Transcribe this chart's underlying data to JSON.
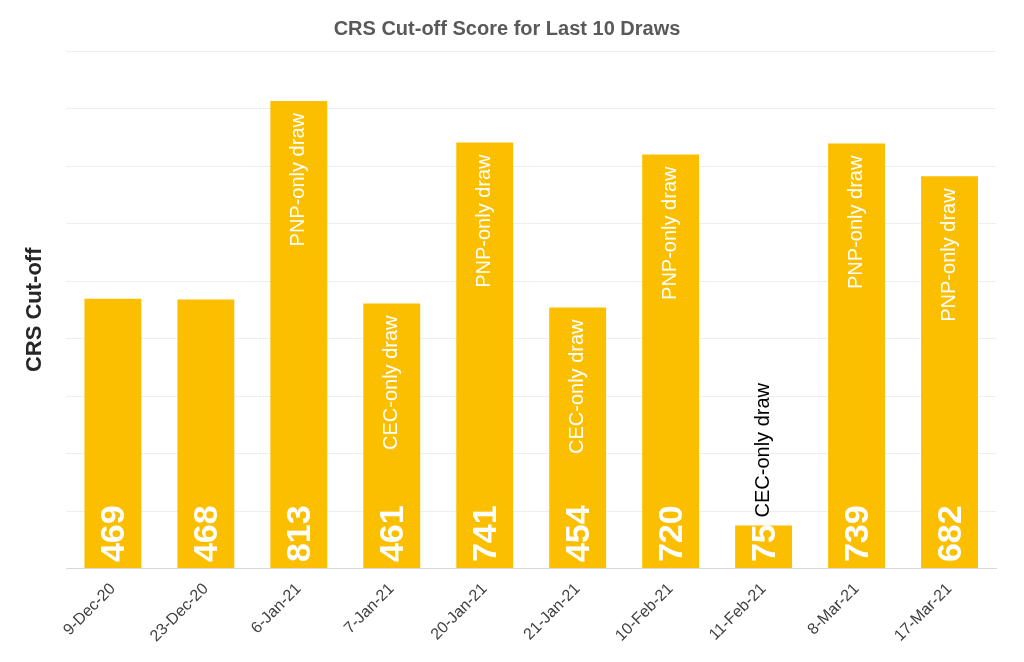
{
  "chart_data": {
    "type": "bar",
    "title": "CRS Cut-off Score for Last 10 Draws",
    "ylabel": "CRS Cut-off",
    "categories": [
      "9-Dec-20",
      "23-Dec-20",
      "6-Jan-21",
      "7-Jan-21",
      "20-Jan-21",
      "21-Jan-21",
      "10-Feb-21",
      "11-Feb-21",
      "8-Mar-21",
      "17-Mar-21"
    ],
    "values": [
      469,
      468,
      813,
      461,
      741,
      454,
      720,
      75,
      739,
      682
    ],
    "color": "#fbbf00",
    "ylim": [
      0,
      900
    ],
    "yticks": [
      {
        "value": 0,
        "label": null
      },
      {
        "value": 100,
        "label": null
      },
      {
        "value": 200,
        "label": null
      },
      {
        "value": 300,
        "label": null
      },
      {
        "value": 400,
        "label": null
      },
      {
        "value": 500,
        "label": null
      },
      {
        "value": 600,
        "label": null
      },
      {
        "value": 700,
        "label": null
      },
      {
        "value": 800,
        "label": null
      },
      {
        "value": 900,
        "label": null
      }
    ],
    "grid": "y",
    "tick_labels": "x",
    "data_labels": true,
    "legend": false,
    "annotations": [
      {
        "text": "PNP-only draw",
        "x": "6-Jan-21",
        "y": 813
      },
      {
        "text": "CEC-only draw",
        "x": "7-Jan-21",
        "y": 461
      },
      {
        "text": "PNP-only draw",
        "x": "20-Jan-21",
        "y": 741
      },
      {
        "text": "CEC-only draw",
        "x": "21-Jan-21",
        "y": 454
      },
      {
        "text": "PNP-only draw",
        "x": "10-Feb-21",
        "y": 720
      },
      {
        "text": "CEC-only draw",
        "x": "11-Feb-21",
        "y": 75
      },
      {
        "text": "PNP-only draw",
        "x": "8-Mar-21",
        "y": 739
      },
      {
        "text": "PNP-only draw",
        "x": "17-Mar-21",
        "y": 682
      }
    ]
  }
}
